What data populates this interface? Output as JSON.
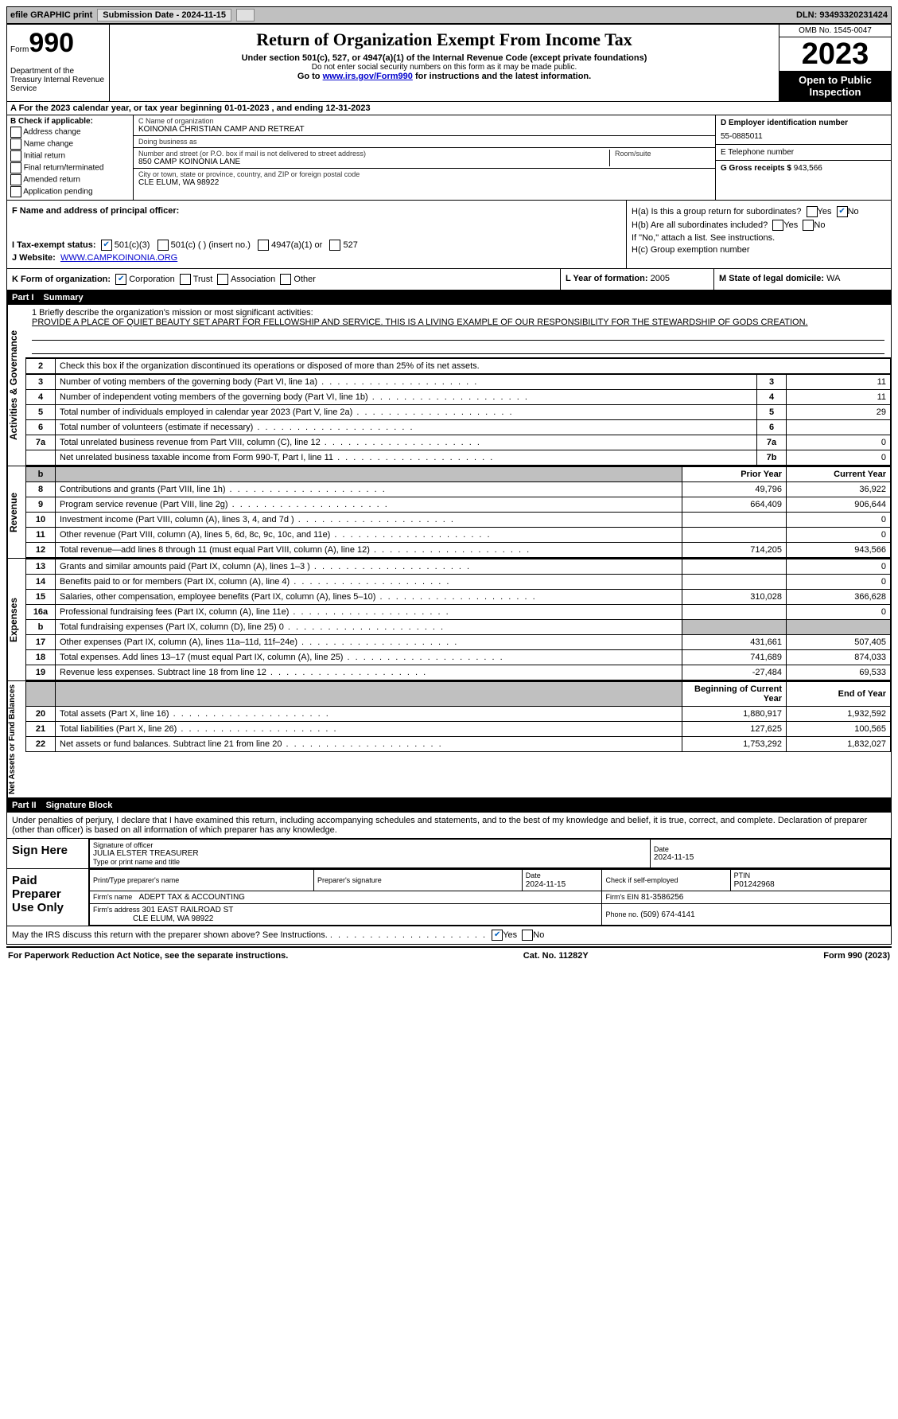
{
  "topbar": {
    "efile": "efile GRAPHIC print",
    "submission": "Submission Date - 2024-11-15",
    "dln": "DLN: 93493320231424"
  },
  "header": {
    "form_word": "Form",
    "form_num": "990",
    "dept": "Department of the Treasury Internal Revenue Service",
    "title": "Return of Organization Exempt From Income Tax",
    "sub": "Under section 501(c), 527, or 4947(a)(1) of the Internal Revenue Code (except private foundations)",
    "ssn": "Do not enter social security numbers on this form as it may be made public.",
    "goto_pre": "Go to ",
    "goto_url": "www.irs.gov/Form990",
    "goto_post": " for instructions and the latest information.",
    "omb": "OMB No. 1545-0047",
    "year": "2023",
    "inspect": "Open to Public Inspection"
  },
  "lineA": "A For the 2023 calendar year, or tax year beginning 01-01-2023    , and ending 12-31-2023",
  "colB": {
    "label": "B Check if applicable:",
    "items": [
      "Address change",
      "Name change",
      "Initial return",
      "Final return/terminated",
      "Amended return",
      "Application pending"
    ]
  },
  "colC": {
    "name_lbl": "C Name of organization",
    "name": "KOINONIA CHRISTIAN CAMP AND RETREAT",
    "dba_lbl": "Doing business as",
    "dba": "",
    "street_lbl": "Number and street (or P.O. box if mail is not delivered to street address)",
    "street": "850 CAMP KOINONIA LANE",
    "room_lbl": "Room/suite",
    "city_lbl": "City or town, state or province, country, and ZIP or foreign postal code",
    "city": "CLE ELUM, WA  98922"
  },
  "colD": {
    "ein_lbl": "D Employer identification number",
    "ein": "55-0885011",
    "phone_lbl": "E Telephone number",
    "phone": "",
    "gross_lbl": "G Gross receipts $",
    "gross": "943,566"
  },
  "fij": {
    "f_lbl": "F  Name and address of principal officer:",
    "i_lbl": "I   Tax-exempt status:",
    "i_501c3": "501(c)(3)",
    "i_501c": "501(c) (  ) (insert no.)",
    "i_4947": "4947(a)(1) or",
    "i_527": "527",
    "j_lbl": "J   Website:",
    "j_val": "WWW.CAMPKOINONIA.ORG",
    "ha_lbl": "H(a)  Is this a group return for subordinates?",
    "hb_lbl": "H(b)  Are all subordinates included?",
    "hb_note": "If \"No,\" attach a list. See instructions.",
    "hc_lbl": "H(c)  Group exemption number"
  },
  "klm": {
    "k_lbl": "K Form of organization:",
    "k_corp": "Corporation",
    "k_trust": "Trust",
    "k_assoc": "Association",
    "k_other": "Other",
    "l_lbl": "L Year of formation:",
    "l_val": "2005",
    "m_lbl": "M State of legal domicile:",
    "m_val": "WA"
  },
  "part1": {
    "hdr_num": "Part I",
    "hdr_title": "Summary"
  },
  "mission": {
    "q1": "1   Briefly describe the organization's mission or most significant activities:",
    "text": "PROVIDE A PLACE OF QUIET BEAUTY SET APART FOR FELLOWSHIP AND SERVICE. THIS IS A LIVING EXAMPLE OF OUR RESPONSIBILITY FOR THE STEWARDSHIP OF GODS CREATION."
  },
  "governance": {
    "side": "Activities & Governance",
    "l2": "Check this box      if the organization discontinued its operations or disposed of more than 25% of its net assets.",
    "rows": [
      {
        "n": "3",
        "d": "Number of voting members of the governing body (Part VI, line 1a)",
        "k": "3",
        "v": "11"
      },
      {
        "n": "4",
        "d": "Number of independent voting members of the governing body (Part VI, line 1b)",
        "k": "4",
        "v": "11"
      },
      {
        "n": "5",
        "d": "Total number of individuals employed in calendar year 2023 (Part V, line 2a)",
        "k": "5",
        "v": "29"
      },
      {
        "n": "6",
        "d": "Total number of volunteers (estimate if necessary)",
        "k": "6",
        "v": ""
      },
      {
        "n": "7a",
        "d": "Total unrelated business revenue from Part VIII, column (C), line 12",
        "k": "7a",
        "v": "0"
      },
      {
        "n": "",
        "d": "Net unrelated business taxable income from Form 990-T, Part I, line 11",
        "k": "7b",
        "v": "0"
      }
    ]
  },
  "revenue": {
    "side": "Revenue",
    "hdr_prior": "Prior Year",
    "hdr_curr": "Current Year",
    "rows": [
      {
        "n": "8",
        "d": "Contributions and grants (Part VIII, line 1h)",
        "p": "49,796",
        "c": "36,922"
      },
      {
        "n": "9",
        "d": "Program service revenue (Part VIII, line 2g)",
        "p": "664,409",
        "c": "906,644"
      },
      {
        "n": "10",
        "d": "Investment income (Part VIII, column (A), lines 3, 4, and 7d )",
        "p": "",
        "c": "0"
      },
      {
        "n": "11",
        "d": "Other revenue (Part VIII, column (A), lines 5, 6d, 8c, 9c, 10c, and 11e)",
        "p": "",
        "c": "0"
      },
      {
        "n": "12",
        "d": "Total revenue—add lines 8 through 11 (must equal Part VIII, column (A), line 12)",
        "p": "714,205",
        "c": "943,566"
      }
    ]
  },
  "expenses": {
    "side": "Expenses",
    "rows": [
      {
        "n": "13",
        "d": "Grants and similar amounts paid (Part IX, column (A), lines 1–3 )",
        "p": "",
        "c": "0"
      },
      {
        "n": "14",
        "d": "Benefits paid to or for members (Part IX, column (A), line 4)",
        "p": "",
        "c": "0"
      },
      {
        "n": "15",
        "d": "Salaries, other compensation, employee benefits (Part IX, column (A), lines 5–10)",
        "p": "310,028",
        "c": "366,628"
      },
      {
        "n": "16a",
        "d": "Professional fundraising fees (Part IX, column (A), line 11e)",
        "p": "",
        "c": "0"
      },
      {
        "n": "b",
        "d": "Total fundraising expenses (Part IX, column (D), line 25) 0",
        "p": "SHADE",
        "c": "SHADE"
      },
      {
        "n": "17",
        "d": "Other expenses (Part IX, column (A), lines 11a–11d, 11f–24e)",
        "p": "431,661",
        "c": "507,405"
      },
      {
        "n": "18",
        "d": "Total expenses. Add lines 13–17 (must equal Part IX, column (A), line 25)",
        "p": "741,689",
        "c": "874,033"
      },
      {
        "n": "19",
        "d": "Revenue less expenses. Subtract line 18 from line 12",
        "p": "-27,484",
        "c": "69,533"
      }
    ]
  },
  "netassets": {
    "side": "Net Assets or Fund Balances",
    "hdr_beg": "Beginning of Current Year",
    "hdr_end": "End of Year",
    "rows": [
      {
        "n": "20",
        "d": "Total assets (Part X, line 16)",
        "p": "1,880,917",
        "c": "1,932,592"
      },
      {
        "n": "21",
        "d": "Total liabilities (Part X, line 26)",
        "p": "127,625",
        "c": "100,565"
      },
      {
        "n": "22",
        "d": "Net assets or fund balances. Subtract line 21 from line 20",
        "p": "1,753,292",
        "c": "1,832,027"
      }
    ]
  },
  "part2": {
    "hdr_num": "Part II",
    "hdr_title": "Signature Block",
    "decl": "Under penalties of perjury, I declare that I have examined this return, including accompanying schedules and statements, and to the best of my knowledge and belief, it is true, correct, and complete. Declaration of preparer (other than officer) is based on all information of which preparer has any knowledge."
  },
  "sign": {
    "here": "Sign Here",
    "sig_lbl": "Signature of officer",
    "date_lbl": "Date",
    "date1": "2024-11-15",
    "name": "JULIA ELSTER  TREASURER",
    "name_lbl": "Type or print name and title"
  },
  "paid": {
    "title": "Paid Preparer Use Only",
    "print_lbl": "Print/Type preparer's name",
    "psig_lbl": "Preparer's signature",
    "pdate_lbl": "Date",
    "pdate": "2024-11-15",
    "check_lbl": "Check      if self-employed",
    "ptin_lbl": "PTIN",
    "ptin": "P01242968",
    "firm_lbl": "Firm's name",
    "firm": "ADEPT TAX & ACCOUNTING",
    "fein_lbl": "Firm's EIN",
    "fein": "81-3586256",
    "faddr_lbl": "Firm's address",
    "faddr1": "301 EAST RAILROAD ST",
    "faddr2": "CLE ELUM, WA  98922",
    "phone_lbl": "Phone no.",
    "phone": "(509) 674-4141"
  },
  "discuss": "May the IRS discuss this return with the preparer shown above? See Instructions.",
  "footer": {
    "left": "For Paperwork Reduction Act Notice, see the separate instructions.",
    "mid": "Cat. No. 11282Y",
    "right": "Form 990 (2023)"
  },
  "yesno": {
    "yes": "Yes",
    "no": "No"
  }
}
